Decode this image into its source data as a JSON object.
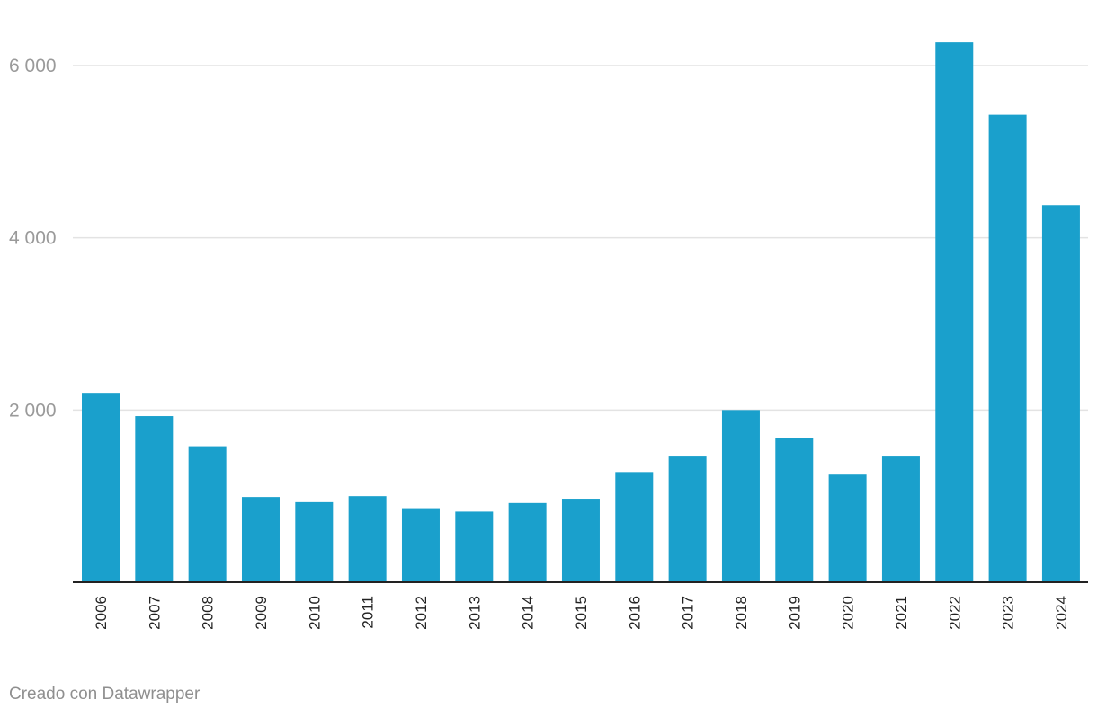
{
  "chart_data": {
    "type": "bar",
    "title": "",
    "xlabel": "",
    "ylabel": "",
    "categories": [
      "2006",
      "2007",
      "2008",
      "2009",
      "2010",
      "2011",
      "2012",
      "2013",
      "2014",
      "2015",
      "2016",
      "2017",
      "2018",
      "2019",
      "2020",
      "2021",
      "2022",
      "2023",
      "2024"
    ],
    "values": [
      2200,
      1930,
      1580,
      990,
      930,
      1000,
      860,
      820,
      920,
      970,
      1280,
      1460,
      2000,
      1670,
      1250,
      1460,
      6270,
      5430,
      4380
    ],
    "ylim": [
      0,
      6000
    ],
    "yticks": [
      2000,
      4000,
      6000
    ],
    "ytick_labels": [
      "2 000",
      "4 000",
      "6 000"
    ],
    "grid": true,
    "bar_color": "#1aa0cc"
  },
  "footer": {
    "credit": "Creado con Datawrapper"
  }
}
